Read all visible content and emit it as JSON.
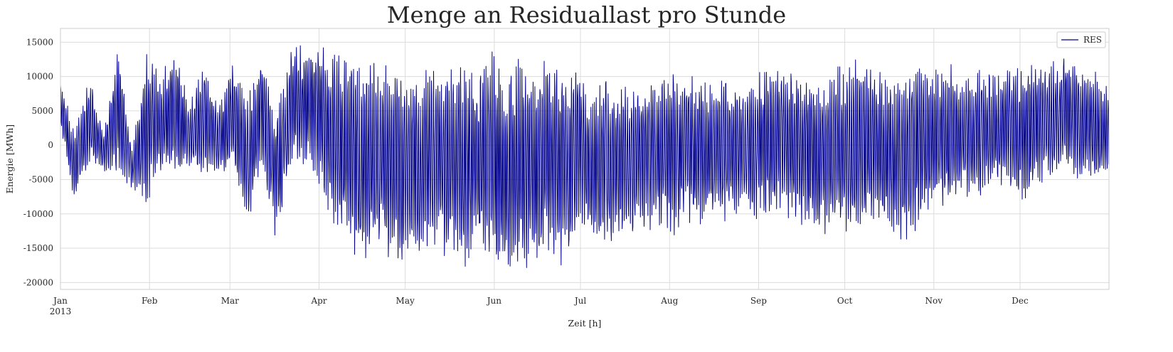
{
  "chart_data": {
    "type": "line",
    "title": "Menge an Residuallast pro Stunde",
    "xlabel": "Zeit [h]",
    "ylabel": "Energie [MWh]",
    "x_range": [
      "2013-01-01T00:00",
      "2013-12-31T23:00"
    ],
    "ylim": [
      -21000,
      17000
    ],
    "yticks": [
      15000,
      10000,
      5000,
      0,
      -5000,
      -10000,
      -15000,
      -20000
    ],
    "xticks": [
      {
        "date": "2013-01-01",
        "label": "Jan"
      },
      {
        "date": "2013-02-01",
        "label": "Feb"
      },
      {
        "date": "2013-03-01",
        "label": "Mar"
      },
      {
        "date": "2013-04-01",
        "label": "Apr"
      },
      {
        "date": "2013-05-01",
        "label": "May"
      },
      {
        "date": "2013-06-01",
        "label": "Jun"
      },
      {
        "date": "2013-07-01",
        "label": "Jul"
      },
      {
        "date": "2013-08-01",
        "label": "Aug"
      },
      {
        "date": "2013-09-01",
        "label": "Sep"
      },
      {
        "date": "2013-10-01",
        "label": "Oct"
      },
      {
        "date": "2013-11-01",
        "label": "Nov"
      },
      {
        "date": "2013-12-01",
        "label": "Dec"
      }
    ],
    "year_label": "2013",
    "grid": true,
    "legend": {
      "position": "top-right",
      "entries": [
        "RES"
      ]
    },
    "series": [
      {
        "name": "RES",
        "color": "#00008B",
        "sampling": "daily minimum and maximum of hourly values (approximate, read from chart)",
        "dates": [
          "2013-01-01",
          "2013-01-06",
          "2013-01-11",
          "2013-01-16",
          "2013-01-21",
          "2013-01-26",
          "2013-01-31",
          "2013-02-05",
          "2013-02-10",
          "2013-02-15",
          "2013-02-20",
          "2013-02-25",
          "2013-03-02",
          "2013-03-07",
          "2013-03-12",
          "2013-03-17",
          "2013-03-22",
          "2013-03-27",
          "2013-04-01",
          "2013-04-06",
          "2013-04-11",
          "2013-04-16",
          "2013-04-21",
          "2013-04-26",
          "2013-05-01",
          "2013-05-06",
          "2013-05-11",
          "2013-05-16",
          "2013-05-21",
          "2013-05-26",
          "2013-05-31",
          "2013-06-05",
          "2013-06-10",
          "2013-06-15",
          "2013-06-20",
          "2013-06-25",
          "2013-06-30",
          "2013-07-05",
          "2013-07-10",
          "2013-07-15",
          "2013-07-20",
          "2013-07-25",
          "2013-07-30",
          "2013-08-04",
          "2013-08-09",
          "2013-08-14",
          "2013-08-19",
          "2013-08-24",
          "2013-08-29",
          "2013-09-03",
          "2013-09-08",
          "2013-09-13",
          "2013-09-18",
          "2013-09-23",
          "2013-09-28",
          "2013-10-03",
          "2013-10-08",
          "2013-10-13",
          "2013-10-18",
          "2013-10-23",
          "2013-10-28",
          "2013-11-02",
          "2013-11-07",
          "2013-11-12",
          "2013-11-17",
          "2013-11-22",
          "2013-11-27",
          "2013-12-02",
          "2013-12-07",
          "2013-12-12",
          "2013-12-17",
          "2013-12-22",
          "2013-12-27",
          "2013-12-31"
        ],
        "daily_max": [
          10000,
          2000,
          10800,
          1500,
          14800,
          -500,
          14500,
          10500,
          14500,
          6000,
          13500,
          5500,
          13000,
          7000,
          14000,
          6000,
          14000,
          15000,
          15000,
          14000,
          13500,
          12000,
          13000,
          11500,
          12500,
          11500,
          12000,
          10500,
          13000,
          11000,
          14000,
          10500,
          13000,
          12000,
          13500,
          12000,
          12500,
          7000,
          11000,
          9000,
          9000,
          9500,
          11000,
          10500,
          11500,
          10000,
          11000,
          9500,
          10000,
          11500,
          12500,
          11500,
          11000,
          10500,
          12500,
          12000,
          13500,
          11000,
          11500,
          10500,
          13500,
          11500,
          12000,
          10500,
          11500,
          10500,
          12000,
          11500,
          13500,
          12000,
          14500,
          12000,
          11000,
          9000
        ],
        "daily_min": [
          2000,
          -9000,
          -3500,
          -4000,
          -4500,
          -6500,
          -9000,
          -4000,
          -5000,
          -3500,
          -4500,
          -5000,
          -4000,
          -12500,
          -2500,
          -14000,
          -3500,
          -3000,
          -6000,
          -11500,
          -15000,
          -18500,
          -16000,
          -19000,
          -19000,
          -17500,
          -16000,
          -16500,
          -18500,
          -15000,
          -19000,
          -19000,
          -19000,
          -18500,
          -17000,
          -18500,
          -14000,
          -14500,
          -15000,
          -14000,
          -13500,
          -12500,
          -13000,
          -13500,
          -12500,
          -11500,
          -12000,
          -10500,
          -11000,
          -10500,
          -11000,
          -12000,
          -13000,
          -13500,
          -12000,
          -14000,
          -12500,
          -12000,
          -13500,
          -15000,
          -11000,
          -10000,
          -8500,
          -7500,
          -8000,
          -6000,
          -7500,
          -8500,
          -6000,
          -5000,
          -4500,
          -5500,
          -6000,
          -5500
        ]
      }
    ]
  }
}
